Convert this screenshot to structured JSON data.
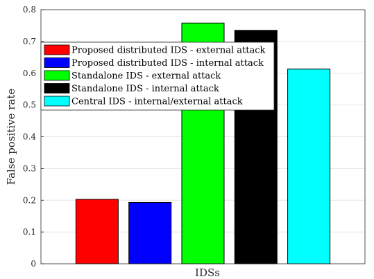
{
  "chart_data": {
    "type": "bar",
    "xlabel": "IDSs",
    "ylabel": "False positive rate",
    "ylim": [
      0,
      0.8
    ],
    "yticks": [
      "0",
      "0.1",
      "0.2",
      "0.3",
      "0.4",
      "0.5",
      "0.6",
      "0.7",
      "0.8"
    ],
    "grid": "horizontal",
    "legend_position": "top-left",
    "series": [
      {
        "name": "Proposed distributed IDS - external attack",
        "value": 0.203,
        "color": "#ff0000"
      },
      {
        "name": "Proposed distributed IDS - internal attack",
        "value": 0.193,
        "color": "#0000ff"
      },
      {
        "name": "Standalone IDS - external attack",
        "value": 0.758,
        "color": "#00ff00"
      },
      {
        "name": "Standalone IDS - internal attack",
        "value": 0.735,
        "color": "#000000"
      },
      {
        "name": "Central IDS - internal/external attack",
        "value": 0.613,
        "color": "#00ffff"
      }
    ]
  }
}
